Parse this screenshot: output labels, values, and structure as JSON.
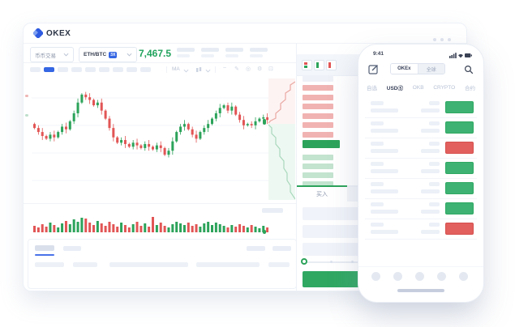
{
  "colors": {
    "accent_blue": "#3566e3",
    "price_green": "#21a35d",
    "candle_green": "#2ca35a",
    "candle_red": "#e25555",
    "depth_red_line": "#eaa9a2",
    "depth_green_line": "#a8d8bc",
    "ask_bar": "#f1b3b1",
    "bid_bar": "#c3e4cf",
    "btn_green": "#3eb273",
    "btn_red": "#e2605e",
    "placeholder": "#e9eef6",
    "grid_line": "#f3f5f9"
  },
  "icons": {
    "logo": "okex-diamond",
    "window_menu": "three-dots",
    "phone_compose": "edit-square",
    "phone_search": "magnifier",
    "phone_status": "signal-wifi-battery",
    "toolbar": [
      "line-tool",
      "edit-pencil",
      "camera",
      "settings-gear",
      "fullscreen"
    ]
  },
  "browser": {
    "brand": "OKEX",
    "market_dropdown": "币币交易",
    "pair": "ETH/BTC",
    "leverage": "3X",
    "price": "7,467.5",
    "toolbar_ma": "MA",
    "buy_tab_label": "买入",
    "interval_pill_count": 9,
    "active_interval_index": 1,
    "stat_group_count": 4
  },
  "chart_data": {
    "type": "candlestick",
    "title": "ETH/BTC price chart with volume and depth",
    "closes": [
      55,
      52,
      49,
      47,
      50,
      48,
      52,
      56,
      54,
      60,
      66,
      74,
      80,
      78,
      76,
      72,
      74,
      68,
      62,
      55,
      48,
      44,
      46,
      43,
      41,
      44,
      42,
      40,
      43,
      41,
      39,
      42,
      40,
      35,
      38,
      45,
      52,
      56,
      58,
      54,
      50,
      47,
      52,
      55,
      58,
      62,
      66,
      70,
      72,
      68,
      71,
      65,
      61,
      57,
      58,
      57,
      60,
      62,
      63,
      61
    ],
    "volumes": [
      8,
      6,
      10,
      7,
      12,
      9,
      6,
      11,
      14,
      10,
      16,
      13,
      18,
      17,
      12,
      9,
      14,
      11,
      8,
      13,
      10,
      7,
      12,
      9,
      6,
      10,
      13,
      8,
      11,
      7,
      19,
      9,
      12,
      8,
      6,
      10,
      13,
      11,
      9,
      12,
      8,
      10,
      7,
      11,
      13,
      9,
      12,
      10,
      8,
      6,
      9,
      7,
      10,
      8,
      6,
      9,
      7,
      5,
      8,
      6
    ],
    "last_price": "7,467.5",
    "grid": true
  },
  "orderbook": {
    "view_toggles": [
      "both-sides",
      "bids-only",
      "asks-only"
    ],
    "ask_row_count": 6,
    "bid_row_count": 4,
    "has_last_price_bar": true
  },
  "phone": {
    "status_time": "9:41",
    "segmented": [
      "OKEx",
      "全球"
    ],
    "segmented_active_index": 0,
    "category_tabs": [
      "自选",
      "USDⓈ",
      "OKB",
      "CRYPTO",
      "合约"
    ],
    "active_category_index": 1,
    "row_buttons": [
      "green",
      "green",
      "red",
      "green",
      "green",
      "green",
      "red"
    ],
    "dock_item_count": 5
  }
}
